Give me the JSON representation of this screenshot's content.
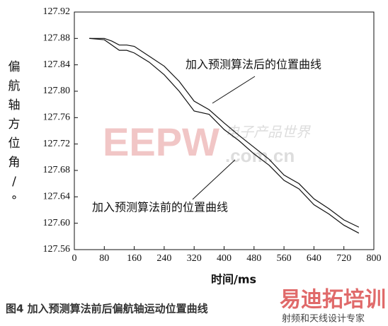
{
  "chart_data": {
    "type": "line",
    "x_label": "时间/ms",
    "y_label": "偏航轴方位角/°",
    "xlim": [
      0,
      800
    ],
    "xticks": [
      0,
      80,
      160,
      240,
      320,
      400,
      480,
      560,
      640,
      720,
      800
    ],
    "ylim": [
      127.56,
      127.92
    ],
    "yticks": [
      127.56,
      {
        "value": 127.6,
        "label": "127.60"
      },
      127.64,
      127.68,
      127.72,
      127.76,
      {
        "value": 127.8,
        "label": "127.80"
      },
      127.84,
      127.88,
      127.92
    ],
    "x": [
      40,
      80,
      100,
      120,
      140,
      160,
      200,
      240,
      280,
      320,
      360,
      400,
      440,
      480,
      520,
      560,
      600,
      640,
      680,
      720,
      760
    ],
    "series": [
      {
        "name": "加入预测算法后的位置曲线",
        "color": "#111111",
        "values": [
          127.88,
          127.88,
          127.876,
          127.87,
          127.87,
          127.868,
          127.853,
          127.838,
          127.815,
          127.785,
          127.772,
          127.752,
          127.733,
          127.715,
          127.697,
          127.673,
          127.66,
          127.637,
          127.622,
          127.605,
          127.594
        ]
      },
      {
        "name": "加入预测算法前的位置曲线",
        "color": "#111111",
        "values": [
          127.88,
          127.878,
          127.87,
          127.862,
          127.862,
          127.858,
          127.844,
          127.825,
          127.8,
          127.77,
          127.765,
          127.742,
          127.725,
          127.705,
          127.688,
          127.665,
          127.652,
          127.628,
          127.614,
          127.597,
          127.585
        ]
      }
    ]
  },
  "caption": "图4  加入预测算法前后偏航轴运动位置曲线",
  "watermarks": [
    "EEPW",
    "电子产品世界",
    ".com.cn",
    "易迪拓培训",
    "射频和天线设计专家"
  ]
}
